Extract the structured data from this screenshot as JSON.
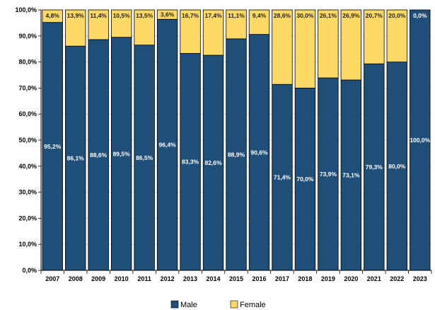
{
  "chart_data": {
    "type": "bar",
    "stacked": true,
    "categories": [
      "2007",
      "2008",
      "2009",
      "2010",
      "2011",
      "2012",
      "2013",
      "2014",
      "2015",
      "2016",
      "2017",
      "2018",
      "2019",
      "2020",
      "2021",
      "2022",
      "2023"
    ],
    "series": [
      {
        "name": "Male",
        "color": "#1f4e79",
        "values": [
          95.2,
          86.1,
          88.6,
          89.5,
          86.5,
          96.4,
          83.3,
          82.6,
          88.9,
          90.6,
          71.4,
          70.0,
          73.9,
          73.1,
          79.3,
          80.0,
          100.0
        ],
        "labels": [
          "95,2%",
          "86,1%",
          "88,6%",
          "89,5%",
          "86,5%",
          "96,4%",
          "83,3%",
          "82,6%",
          "88,9%",
          "90,6%",
          "71,4%",
          "70,0%",
          "73,9%",
          "73,1%",
          "79,3%",
          "80,0%",
          "100,0%"
        ]
      },
      {
        "name": "Female",
        "color": "#ffd966",
        "values": [
          4.8,
          13.9,
          11.4,
          10.5,
          13.5,
          3.6,
          16.7,
          17.4,
          11.1,
          9.4,
          28.6,
          30.0,
          26.1,
          26.9,
          20.7,
          20.0,
          0.0
        ],
        "labels": [
          "4,8%",
          "13,9%",
          "11,4%",
          "10,5%",
          "13,5%",
          "3,6%",
          "16,7%",
          "17,4%",
          "11,1%",
          "9,4%",
          "28,6%",
          "30,0%",
          "26,1%",
          "26,9%",
          "20,7%",
          "20,0%",
          "0,0%"
        ]
      }
    ],
    "y_ticks": [
      "0,0%",
      "10,0%",
      "20,0%",
      "30,0%",
      "40,0%",
      "50,0%",
      "60,0%",
      "70,0%",
      "80,0%",
      "90,0%",
      "100,0%"
    ],
    "ylim": [
      0,
      100
    ],
    "grid": true,
    "legend_position": "bottom"
  }
}
